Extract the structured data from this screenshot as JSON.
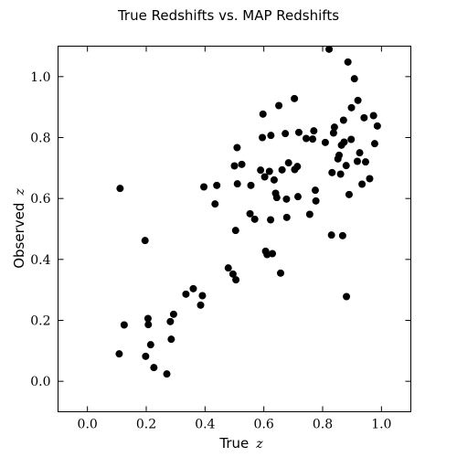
{
  "chart_data": {
    "type": "scatter",
    "title": "True Redshifts vs. MAP Redshifts",
    "xlabel": "True",
    "xlabel_var": "z",
    "ylabel": "Observed",
    "ylabel_var": "z",
    "xlim": [
      -0.1,
      1.1
    ],
    "ylim": [
      -0.1,
      1.1
    ],
    "xticks": [
      0.0,
      0.2,
      0.4,
      0.6,
      0.8,
      1.0
    ],
    "yticks": [
      0.0,
      0.2,
      0.4,
      0.6,
      0.8,
      1.0
    ],
    "xtick_labels": [
      "0.0",
      "0.2",
      "0.4",
      "0.6",
      "0.8",
      "1.0"
    ],
    "ytick_labels": [
      "0.0",
      "0.2",
      "0.4",
      "0.6",
      "0.8",
      "1.0"
    ],
    "grid": false,
    "marker_color": "#000000",
    "points": [
      {
        "x": 0.108,
        "y": 0.09
      },
      {
        "x": 0.125,
        "y": 0.185
      },
      {
        "x": 0.111,
        "y": 0.633
      },
      {
        "x": 0.196,
        "y": 0.462
      },
      {
        "x": 0.198,
        "y": 0.082
      },
      {
        "x": 0.206,
        "y": 0.206
      },
      {
        "x": 0.207,
        "y": 0.186
      },
      {
        "x": 0.215,
        "y": 0.12
      },
      {
        "x": 0.226,
        "y": 0.045
      },
      {
        "x": 0.27,
        "y": 0.024
      },
      {
        "x": 0.282,
        "y": 0.196
      },
      {
        "x": 0.285,
        "y": 0.138
      },
      {
        "x": 0.293,
        "y": 0.22
      },
      {
        "x": 0.335,
        "y": 0.286
      },
      {
        "x": 0.36,
        "y": 0.304
      },
      {
        "x": 0.385,
        "y": 0.25
      },
      {
        "x": 0.391,
        "y": 0.281
      },
      {
        "x": 0.396,
        "y": 0.638
      },
      {
        "x": 0.434,
        "y": 0.582
      },
      {
        "x": 0.44,
        "y": 0.643
      },
      {
        "x": 0.479,
        "y": 0.372
      },
      {
        "x": 0.495,
        "y": 0.352
      },
      {
        "x": 0.5,
        "y": 0.707
      },
      {
        "x": 0.504,
        "y": 0.495
      },
      {
        "x": 0.505,
        "y": 0.333
      },
      {
        "x": 0.509,
        "y": 0.767
      },
      {
        "x": 0.51,
        "y": 0.648
      },
      {
        "x": 0.525,
        "y": 0.712
      },
      {
        "x": 0.553,
        "y": 0.55
      },
      {
        "x": 0.556,
        "y": 0.643
      },
      {
        "x": 0.569,
        "y": 0.532
      },
      {
        "x": 0.589,
        "y": 0.693
      },
      {
        "x": 0.595,
        "y": 0.8
      },
      {
        "x": 0.597,
        "y": 0.877
      },
      {
        "x": 0.603,
        "y": 0.671
      },
      {
        "x": 0.606,
        "y": 0.427
      },
      {
        "x": 0.611,
        "y": 0.416
      },
      {
        "x": 0.619,
        "y": 0.689
      },
      {
        "x": 0.623,
        "y": 0.53
      },
      {
        "x": 0.624,
        "y": 0.807
      },
      {
        "x": 0.629,
        "y": 0.419
      },
      {
        "x": 0.635,
        "y": 0.661
      },
      {
        "x": 0.64,
        "y": 0.617
      },
      {
        "x": 0.644,
        "y": 0.603
      },
      {
        "x": 0.651,
        "y": 0.905
      },
      {
        "x": 0.657,
        "y": 0.355
      },
      {
        "x": 0.662,
        "y": 0.694
      },
      {
        "x": 0.673,
        "y": 0.813
      },
      {
        "x": 0.677,
        "y": 0.598
      },
      {
        "x": 0.678,
        "y": 0.538
      },
      {
        "x": 0.684,
        "y": 0.717
      },
      {
        "x": 0.704,
        "y": 0.928
      },
      {
        "x": 0.705,
        "y": 0.695
      },
      {
        "x": 0.714,
        "y": 0.705
      },
      {
        "x": 0.716,
        "y": 0.606
      },
      {
        "x": 0.719,
        "y": 0.817
      },
      {
        "x": 0.744,
        "y": 0.797
      },
      {
        "x": 0.756,
        "y": 0.548
      },
      {
        "x": 0.766,
        "y": 0.795
      },
      {
        "x": 0.77,
        "y": 0.822
      },
      {
        "x": 0.775,
        "y": 0.627
      },
      {
        "x": 0.777,
        "y": 0.592
      },
      {
        "x": 0.809,
        "y": 0.784
      },
      {
        "x": 0.822,
        "y": 1.09
      },
      {
        "x": 0.83,
        "y": 0.48
      },
      {
        "x": 0.832,
        "y": 0.685
      },
      {
        "x": 0.837,
        "y": 0.815
      },
      {
        "x": 0.84,
        "y": 0.834
      },
      {
        "x": 0.852,
        "y": 0.73
      },
      {
        "x": 0.856,
        "y": 0.742
      },
      {
        "x": 0.861,
        "y": 0.68
      },
      {
        "x": 0.864,
        "y": 0.775
      },
      {
        "x": 0.868,
        "y": 0.478
      },
      {
        "x": 0.871,
        "y": 0.857
      },
      {
        "x": 0.873,
        "y": 0.785
      },
      {
        "x": 0.88,
        "y": 0.708
      },
      {
        "x": 0.881,
        "y": 0.278
      },
      {
        "x": 0.886,
        "y": 1.048
      },
      {
        "x": 0.89,
        "y": 0.613
      },
      {
        "x": 0.897,
        "y": 0.794
      },
      {
        "x": 0.898,
        "y": 0.898
      },
      {
        "x": 0.908,
        "y": 0.993
      },
      {
        "x": 0.918,
        "y": 0.722
      },
      {
        "x": 0.92,
        "y": 0.922
      },
      {
        "x": 0.926,
        "y": 0.75
      },
      {
        "x": 0.934,
        "y": 0.647
      },
      {
        "x": 0.941,
        "y": 0.865
      },
      {
        "x": 0.946,
        "y": 0.72
      },
      {
        "x": 0.96,
        "y": 0.665
      },
      {
        "x": 0.973,
        "y": 0.872
      },
      {
        "x": 0.977,
        "y": 0.78
      },
      {
        "x": 0.986,
        "y": 0.838
      }
    ]
  }
}
